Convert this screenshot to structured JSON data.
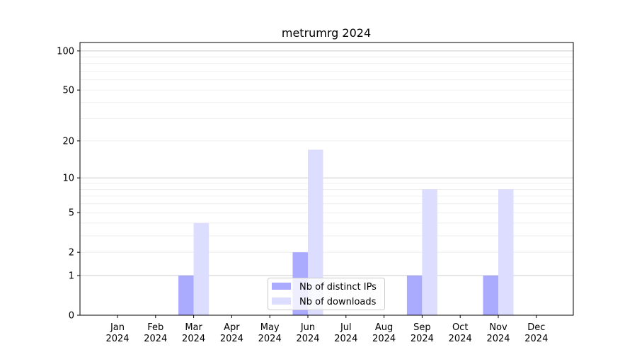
{
  "chart_data": {
    "type": "bar",
    "title": "metrumrg 2024",
    "xlabel": "",
    "ylabel": "",
    "y_scale": "symlog",
    "ylim": [
      0,
      116
    ],
    "yticks": [
      0,
      1,
      2,
      5,
      10,
      20,
      50,
      100
    ],
    "grid": "y major and minor",
    "legend_position": "lower center",
    "categories": [
      "Jan\n2024",
      "Feb\n2024",
      "Mar\n2024",
      "Apr\n2024",
      "May\n2024",
      "Jun\n2024",
      "Jul\n2024",
      "Aug\n2024",
      "Sep\n2024",
      "Oct\n2024",
      "Nov\n2024",
      "Dec\n2024"
    ],
    "series": [
      {
        "name": "Nb of distinct IPs",
        "color": "#aaaaff",
        "values": [
          0,
          0,
          1,
          0,
          0,
          2,
          0,
          0,
          1,
          0,
          1,
          0
        ]
      },
      {
        "name": "Nb of downloads",
        "color": "#ddddff",
        "values": [
          0,
          0,
          4,
          0,
          0,
          17,
          0,
          0,
          8,
          0,
          8,
          0
        ]
      }
    ]
  }
}
